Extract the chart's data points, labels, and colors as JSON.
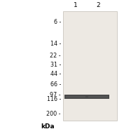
{
  "title": "kDa",
  "lane_labels": [
    "1",
    "2"
  ],
  "ladder_marks": [
    200,
    116,
    97,
    66,
    44,
    31,
    22,
    14,
    6
  ],
  "band_kda": 105,
  "band_color": "#4a4a4a",
  "bg_color": "#ede9e3",
  "label_fontsize": 5.8,
  "title_fontsize": 6.5,
  "lane_fontsize": 6.5,
  "ymin": 4,
  "ymax": 260
}
